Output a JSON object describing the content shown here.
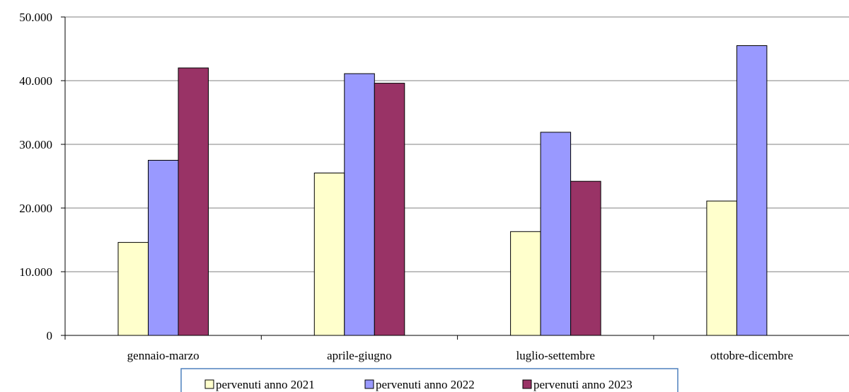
{
  "chart_data": {
    "type": "bar",
    "categories": [
      "gennaio-marzo",
      "aprile-giugno",
      "luglio-settembre",
      "ottobre-dicembre"
    ],
    "series": [
      {
        "name": "pervenuti anno 2021",
        "color": "#FFFFCC",
        "values": [
          14600,
          25500,
          16300,
          21100
        ]
      },
      {
        "name": "pervenuti anno 2022",
        "color": "#9999FF",
        "values": [
          27500,
          41100,
          31900,
          45500
        ]
      },
      {
        "name": "pervenuti anno 2023",
        "color": "#993366",
        "values": [
          42000,
          39600,
          24200,
          null
        ]
      }
    ],
    "yticks": [
      "0",
      "10.000",
      "20.000",
      "30.000",
      "40.000",
      "50.000"
    ],
    "ylim": [
      0,
      50000
    ],
    "title": "",
    "xlabel": "",
    "ylabel": "",
    "grid": true,
    "legend_position": "bottom"
  }
}
